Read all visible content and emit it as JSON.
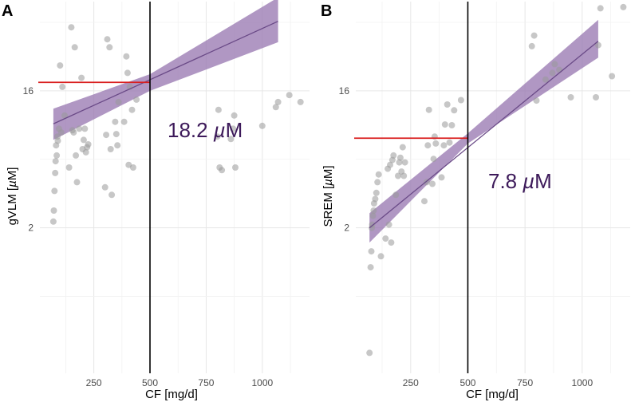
{
  "colors": {
    "point": "#999999",
    "band": "#9a7ab2",
    "line": "#6a4a87",
    "threshold_h": "#d91e1e",
    "threshold_v": "#000000",
    "annotation": "#3d1a5a"
  },
  "chart_data": [
    {
      "type": "scatter",
      "panel": "A",
      "title": "",
      "xlabel": "CF [mg/d]",
      "ylabel": "gVLM [µM]",
      "ylabel_main": "gVLM [",
      "ylabel_unit": "µ",
      "ylabel_tail": "M]",
      "y_scale": "log2",
      "xlim": [
        10,
        1210
      ],
      "ylim": [
        0.22,
        62
      ],
      "x_ticks": [
        250,
        500,
        750,
        1000
      ],
      "x_tick_labels": [
        "250",
        "500",
        "750",
        "1000"
      ],
      "y_ticks": [
        2,
        16
      ],
      "y_tick_labels": [
        "2",
        "16"
      ],
      "annotation": {
        "value": "18.2",
        "unit_prefix": "µ",
        "unit": "M"
      },
      "threshold": {
        "x": 500,
        "y": 18.2
      },
      "fit": {
        "x_start": 70,
        "x_end": 1070,
        "y_start": 9.7,
        "y_end": 46
      },
      "band": {
        "x": [
          70,
          500,
          1070
        ],
        "lower": [
          7.6,
          16.0,
          33.5
        ],
        "upper": [
          12.2,
          20.6,
          66.0
        ]
      },
      "points": {
        "x": [
          70,
          72,
          75,
          78,
          80,
          82,
          85,
          88,
          90,
          95,
          100,
          105,
          110,
          120,
          140,
          150,
          155,
          160,
          165,
          170,
          175,
          185,
          195,
          200,
          205,
          210,
          215,
          220,
          225,
          300,
          305,
          310,
          320,
          325,
          330,
          345,
          350,
          355,
          360,
          385,
          395,
          400,
          405,
          410,
          420,
          425,
          440,
          800,
          805,
          810,
          820,
          860,
          870,
          875,
          880,
          1000,
          1060,
          1070,
          1120,
          1170
        ],
        "y": [
          2.2,
          2.6,
          3.5,
          4.6,
          5.5,
          7.0,
          6.0,
          8.0,
          7.5,
          9.0,
          23.5,
          8.5,
          17.0,
          11.0,
          5.0,
          42.0,
          8.8,
          8.5,
          31.0,
          6.0,
          4.0,
          9.0,
          19.5,
          6.6,
          7.6,
          9.0,
          6.3,
          6.8,
          7.1,
          3.7,
          8.2,
          35.0,
          31.0,
          6.6,
          3.3,
          10.0,
          8.3,
          7.0,
          13.5,
          10.0,
          27.0,
          21.0,
          5.2,
          17.0,
          12.0,
          5.0,
          14.0,
          8.0,
          12.0,
          5.0,
          4.8,
          7.7,
          9.0,
          11.0,
          5.0,
          9.4,
          12.5,
          13.5,
          15.0,
          13.5
        ]
      }
    },
    {
      "type": "scatter",
      "panel": "B",
      "title": "",
      "xlabel": "CF [mg/d]",
      "ylabel": "SREM [µM]",
      "ylabel_main": "SREM [",
      "ylabel_unit": "µ",
      "ylabel_tail": "M]",
      "y_scale": "log2",
      "xlim": [
        10,
        1210
      ],
      "ylim": [
        0.22,
        62
      ],
      "x_ticks": [
        250,
        500,
        750,
        1000
      ],
      "x_tick_labels": [
        "250",
        "500",
        "750",
        "1000"
      ],
      "y_ticks": [
        2,
        16
      ],
      "y_tick_labels": [
        "2",
        "16"
      ],
      "annotation": {
        "value": "7.8",
        "unit_prefix": "µ",
        "unit": "M"
      },
      "threshold": {
        "x": 500,
        "y": 7.8
      },
      "fit": {
        "x_start": 70,
        "x_end": 1070,
        "y_start": 2.0,
        "y_end": 34.0
      },
      "band": {
        "x": [
          70,
          500,
          1070
        ],
        "lower": [
          1.6,
          7.2,
          26.5
        ],
        "upper": [
          2.5,
          8.4,
          47.0
        ]
      },
      "points": {
        "x": [
          70,
          75,
          78,
          80,
          82,
          85,
          88,
          90,
          95,
          100,
          105,
          110,
          120,
          140,
          150,
          155,
          160,
          165,
          170,
          175,
          185,
          195,
          200,
          205,
          210,
          215,
          220,
          225,
          310,
          320,
          325,
          330,
          345,
          350,
          355,
          360,
          385,
          395,
          400,
          410,
          420,
          430,
          440,
          470,
          780,
          790,
          800,
          840,
          870,
          880,
          900,
          950,
          1060,
          1070,
          1080,
          1130,
          1180
        ],
        "y": [
          0.3,
          1.1,
          1.4,
          2.0,
          2.1,
          2.4,
          2.6,
          2.9,
          3.1,
          3.4,
          4.0,
          4.5,
          1.3,
          1.7,
          4.9,
          2.1,
          5.2,
          1.6,
          5.6,
          6.0,
          3.3,
          4.4,
          5.4,
          5.8,
          4.7,
          6.8,
          4.4,
          5.4,
          3.0,
          4.0,
          7.0,
          12.0,
          3.9,
          5.7,
          8.0,
          7.2,
          4.3,
          7.0,
          9.6,
          13.0,
          7.3,
          9.5,
          11.9,
          13.9,
          31.5,
          37.0,
          13.8,
          19.0,
          21.0,
          24.0,
          22.0,
          14.5,
          14.5,
          32.0,
          56.0,
          20.0,
          57.0
        ]
      }
    }
  ]
}
